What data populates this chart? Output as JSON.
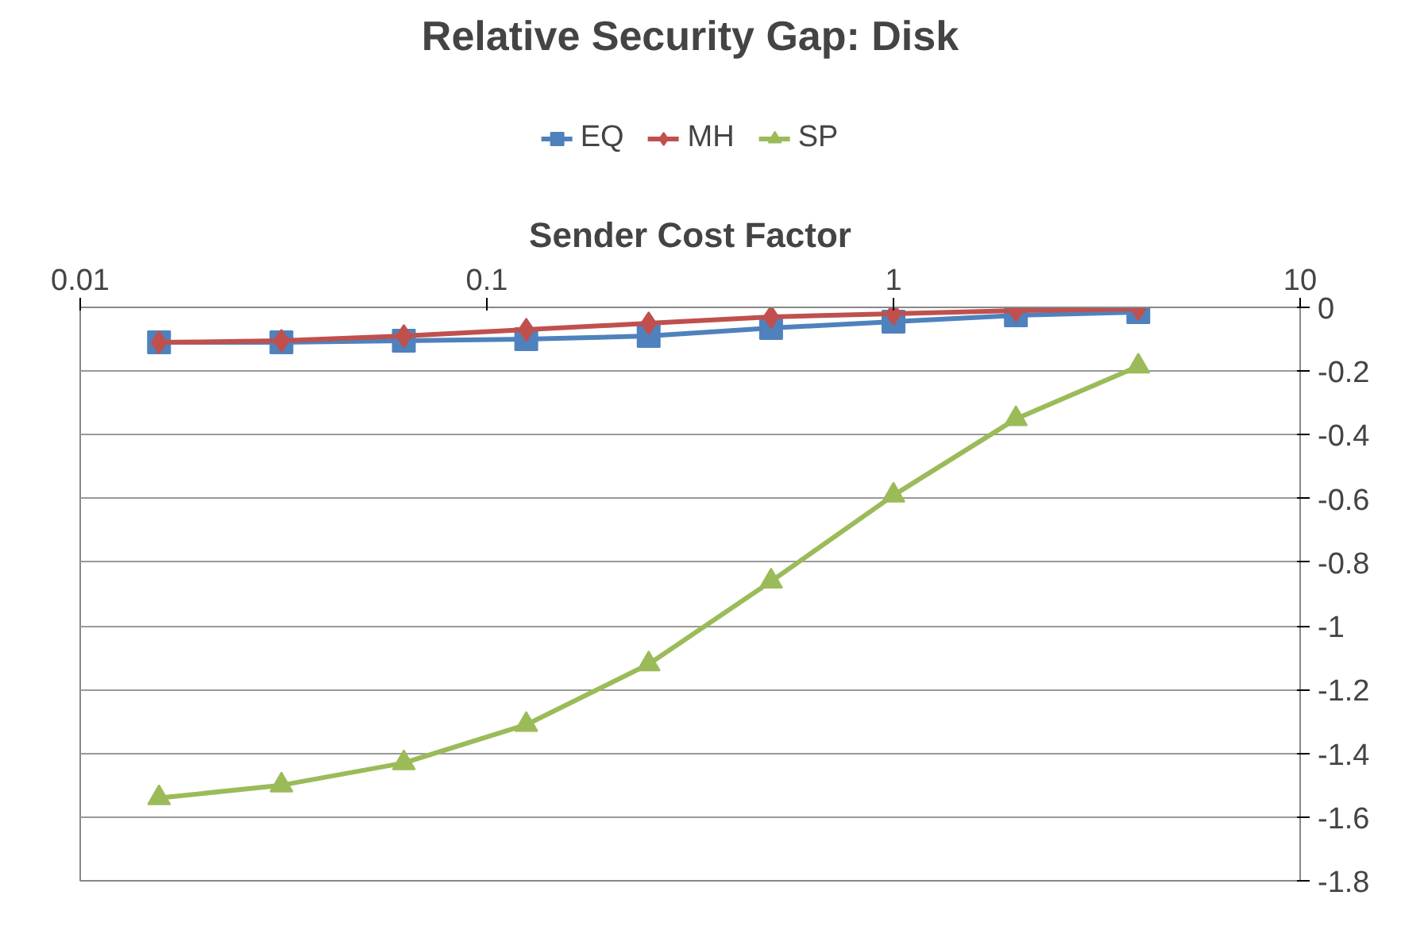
{
  "chart_data": {
    "type": "line",
    "title": "Relative Security Gap: Disk",
    "xlabel": "Sender Cost Factor",
    "x": [
      0.015625,
      0.03125,
      0.0625,
      0.125,
      0.25,
      0.5,
      1,
      2,
      4
    ],
    "series": [
      {
        "name": "EQ",
        "color": "#4f81bd",
        "marker": "square",
        "values": [
          -0.11,
          -0.11,
          -0.105,
          -0.1,
          -0.09,
          -0.065,
          -0.045,
          -0.025,
          -0.015
        ]
      },
      {
        "name": "MH",
        "color": "#c0504d",
        "marker": "diamond",
        "values": [
          -0.11,
          -0.105,
          -0.09,
          -0.07,
          -0.05,
          -0.03,
          -0.02,
          -0.01,
          -0.005
        ]
      },
      {
        "name": "SP",
        "color": "#9bbb59",
        "marker": "triangle",
        "values": [
          -1.54,
          -1.5,
          -1.43,
          -1.31,
          -1.12,
          -0.86,
          -0.59,
          -0.35,
          -0.185
        ]
      }
    ],
    "log": "x",
    "xlim": [
      0.01,
      10
    ],
    "xticks": [
      0.01,
      0.1,
      1,
      10
    ],
    "ylim": [
      -1.8,
      0
    ],
    "yticks": [
      0,
      -0.2,
      -0.4,
      -0.6,
      -0.8,
      -1,
      -1.2,
      -1.4,
      -1.6,
      -1.8
    ],
    "grid": "y",
    "legend": "top",
    "line_style": "solid"
  }
}
